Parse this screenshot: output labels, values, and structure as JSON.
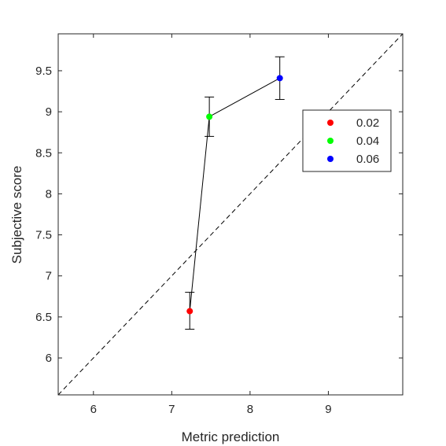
{
  "chart_data": {
    "type": "scatter",
    "xlabel": "Metric prediction",
    "ylabel": "Subjective score",
    "xlim": [
      5.55,
      9.95
    ],
    "ylim": [
      5.55,
      9.95
    ],
    "xticks": [
      "6",
      "7",
      "8",
      "9"
    ],
    "yticks": [
      "6",
      "6.5",
      "7",
      "7.5",
      "8",
      "8.5",
      "9",
      "9.5"
    ],
    "grid": false,
    "legend_position": "top-right",
    "reference_line": {
      "style": "dashed",
      "description": "y = x"
    },
    "connecting_line": true,
    "series": [
      {
        "name": "0.02",
        "color": "#ff0000",
        "x": 7.23,
        "y": 6.57,
        "err_low": 6.35,
        "err_high": 6.8
      },
      {
        "name": "0.04",
        "color": "#00ff00",
        "x": 7.48,
        "y": 8.94,
        "err_low": 8.7,
        "err_high": 9.18
      },
      {
        "name": "0.06",
        "color": "#0000ff",
        "x": 8.38,
        "y": 9.41,
        "err_low": 9.15,
        "err_high": 9.67
      }
    ]
  }
}
